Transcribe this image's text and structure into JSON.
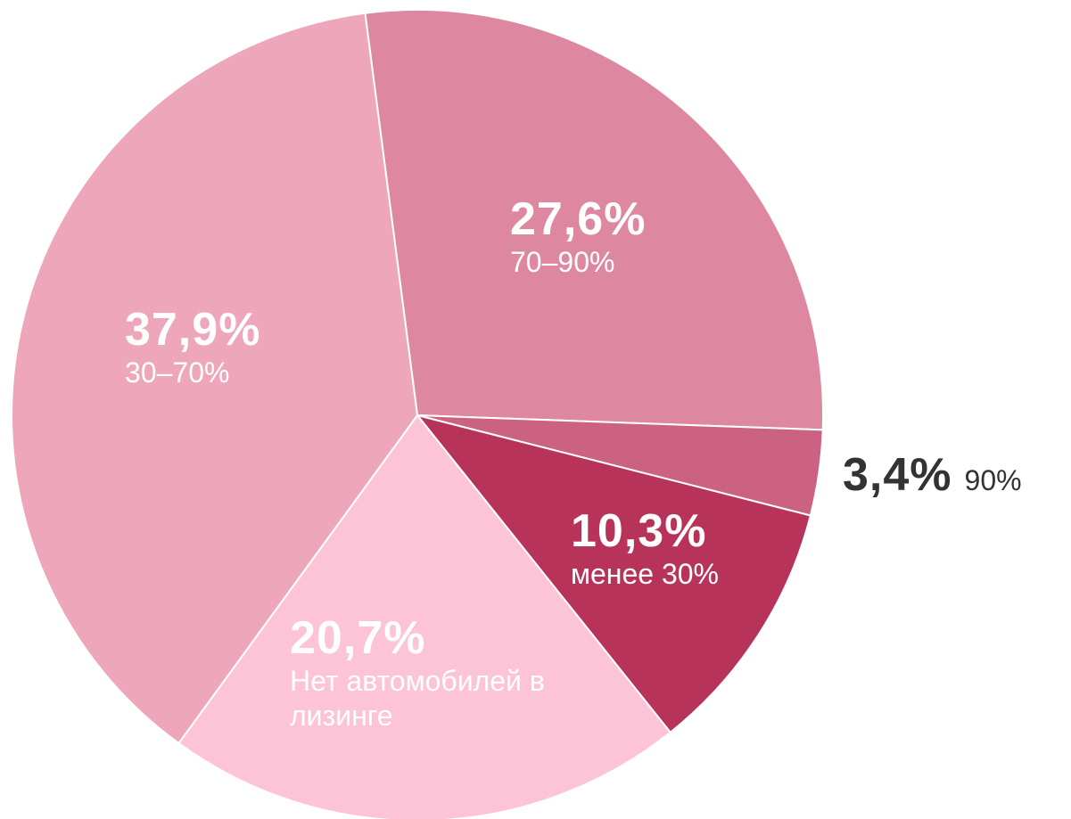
{
  "chart_data": {
    "type": "pie",
    "categories": [
      "70–90%",
      "90%",
      "менее 30%",
      "Нет автомобилей в лизинге",
      "30–70%"
    ],
    "values": [
      27.6,
      3.4,
      10.3,
      20.7,
      37.9
    ],
    "value_labels": [
      "27,6%",
      "3,4%",
      "10,3%",
      "20,7%",
      "37,9%"
    ],
    "colors": [
      "#de87a0",
      "#cc6282",
      "#b8335a",
      "#fcc4d6",
      "#eea6bb"
    ]
  }
}
